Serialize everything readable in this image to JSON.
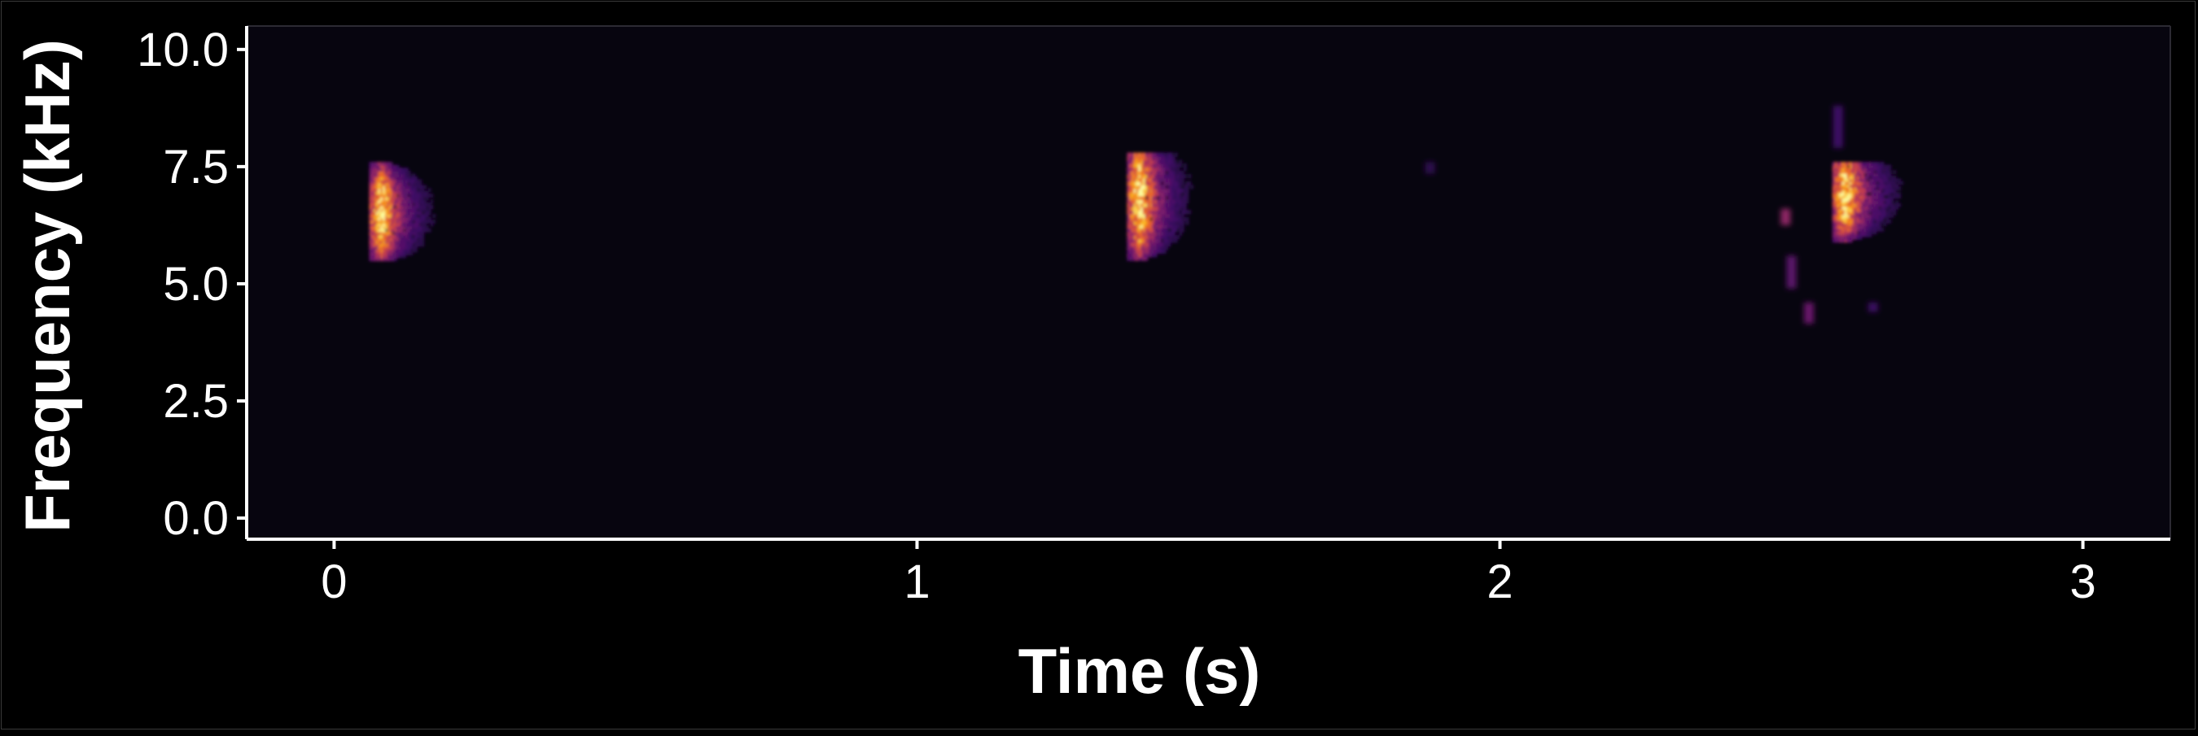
{
  "chart_data": {
    "type": "heatmap",
    "subtype": "spectrogram",
    "title": "",
    "xlabel": "Time (s)",
    "ylabel": "Frequency (kHz)",
    "xlim": [
      -0.15,
      3.15
    ],
    "ylim": [
      -0.45,
      10.5
    ],
    "x_ticks": [
      0,
      1,
      2,
      3
    ],
    "x_tick_labels": [
      "0",
      "1",
      "2",
      "3"
    ],
    "y_ticks": [
      0,
      2.5,
      5,
      7.5,
      10
    ],
    "y_tick_labels": [
      "0.0",
      "2.5",
      "5.0",
      "7.5",
      "10.0"
    ],
    "grid": false,
    "legend": "none",
    "colormap": "inferno",
    "colors": {
      "background": "#000000",
      "panel": "#07050f",
      "axis": "#ffffff",
      "text": "#ffffff",
      "peak": "#fcffa4",
      "high": "#f8a21a",
      "mid": "#c93f57",
      "low": "#5a1670"
    },
    "calls": [
      {
        "onset_s": 0.06,
        "offset_s": 0.2,
        "freq_low_khz": 5.5,
        "freq_high_khz": 7.6,
        "peak_freq_khz": 6.5,
        "peak_time_s": 0.08
      },
      {
        "onset_s": 1.36,
        "offset_s": 1.5,
        "freq_low_khz": 5.2,
        "freq_high_khz": 7.8,
        "peak_freq_khz": 6.8,
        "peak_time_s": 1.38
      },
      {
        "onset_s": 2.57,
        "offset_s": 2.72,
        "freq_low_khz": 5.6,
        "freq_high_khz": 7.6,
        "peak_freq_khz": 6.9,
        "peak_time_s": 2.59
      }
    ],
    "faint_marks": [
      {
        "t_s": 2.49,
        "f_low_khz": 6.25,
        "f_high_khz": 6.6,
        "intensity": 0.45
      },
      {
        "t_s": 2.5,
        "f_low_khz": 4.9,
        "f_high_khz": 5.6,
        "intensity": 0.3
      },
      {
        "t_s": 2.53,
        "f_low_khz": 4.15,
        "f_high_khz": 4.6,
        "intensity": 0.35
      },
      {
        "t_s": 2.58,
        "f_low_khz": 7.9,
        "f_high_khz": 8.8,
        "intensity": 0.2
      },
      {
        "t_s": 1.88,
        "f_low_khz": 7.35,
        "f_high_khz": 7.6,
        "intensity": 0.15
      },
      {
        "t_s": 2.64,
        "f_low_khz": 4.4,
        "f_high_khz": 4.6,
        "intensity": 0.2
      }
    ]
  }
}
